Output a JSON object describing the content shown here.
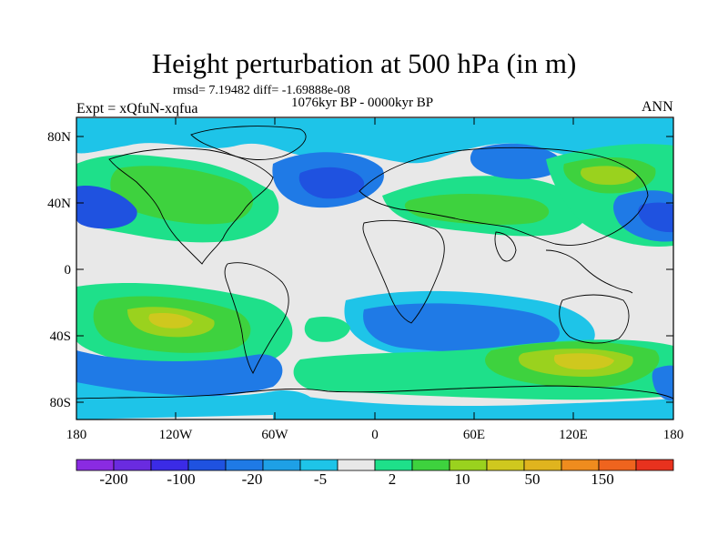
{
  "title": "Height perturbation at 500 hPa (in m)",
  "stats": "rmsd= 7.19482 diff= -1.69888e-08",
  "period": "1076kyr BP - 0000kyr BP",
  "experiment": "Expt = xQfuN-xqfua",
  "season": "ANN",
  "lat_ticks": [
    "80N",
    "40N",
    "0",
    "40S",
    "80S"
  ],
  "lon_ticks": [
    "180",
    "120W",
    "60W",
    "0",
    "60E",
    "120E",
    "180"
  ],
  "colorbar": {
    "labels": [
      "-200",
      "-100",
      "-20",
      "-5",
      "2",
      "10",
      "50",
      "150"
    ],
    "colors": [
      "#8a2be2",
      "#6a2be0",
      "#3b2be6",
      "#1f52e0",
      "#1f7ae6",
      "#1ea0e6",
      "#1ec4e8",
      "#e8e8e8",
      "#1ee08a",
      "#3ed23e",
      "#9ad21e",
      "#cfc81e",
      "#e0b41e",
      "#ef8c1e",
      "#ef641e",
      "#e8321e"
    ]
  },
  "field_colors": {
    "land": "#e8e8e8",
    "neg_strong": "#1f52e0",
    "neg_mid": "#1f7ae6",
    "neg_weak": "#1ec4e8",
    "pos_weak": "#1ee08a",
    "pos_mid": "#3ed23e",
    "pos_strong": "#9ad21e",
    "pos_max": "#cfc81e",
    "pos_peak": "#e0b41e"
  }
}
